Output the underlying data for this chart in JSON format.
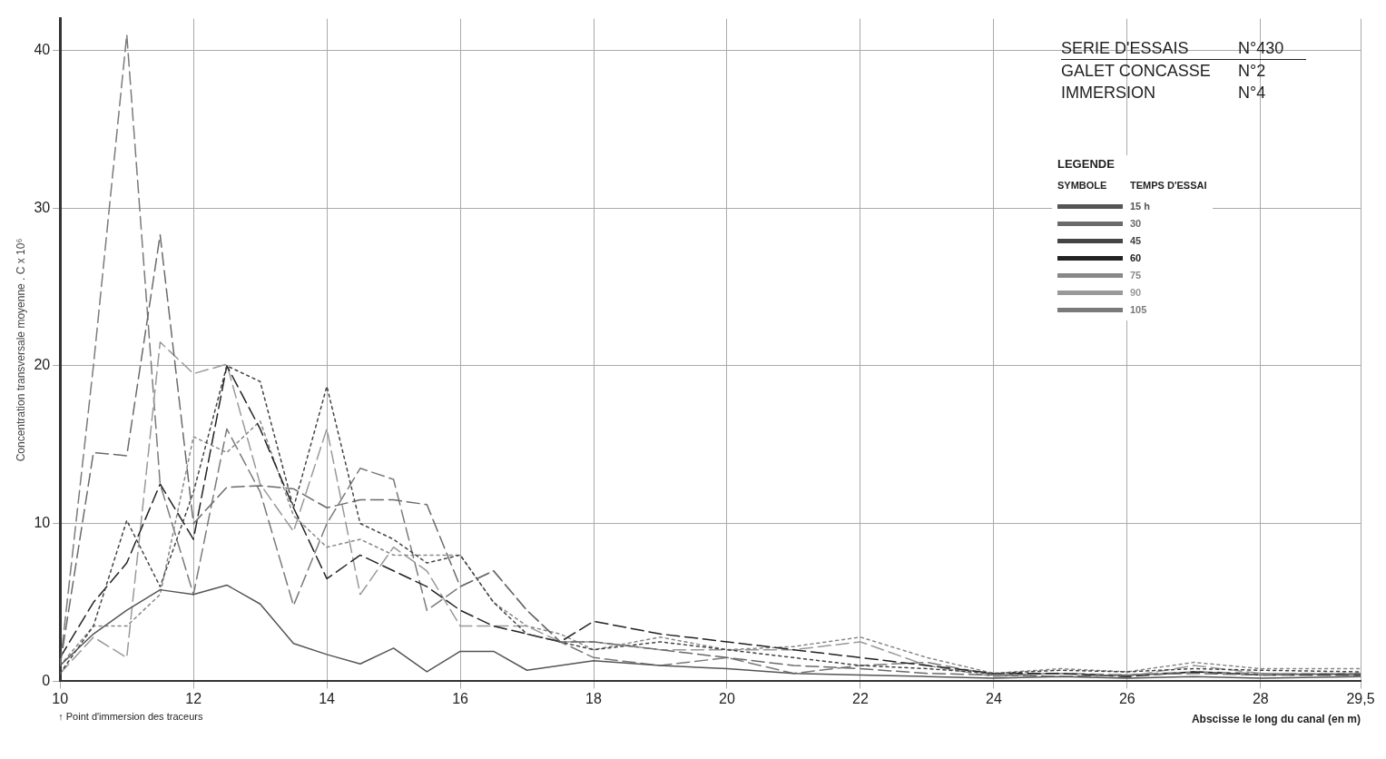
{
  "chart_data": {
    "type": "line",
    "ylabel": "Concentration transversale moyenne . C x 10⁶",
    "xlabel": "Abscisse le long du canal (en m)",
    "legend_title": "LEGENDE",
    "annotations": [
      "SERIE D'ESSAIS",
      "N°430",
      "GALET CONCASSE",
      "N°2",
      "IMMERSION",
      "N°4",
      "SYMBOLE",
      "TEMPS D'ESSAI",
      "↑ Point d'immersion des traceurs"
    ],
    "x": [
      10,
      10.5,
      11,
      11.5,
      12,
      12.5,
      13,
      13.5,
      14,
      14.5,
      15,
      15.5,
      16,
      16.5,
      17,
      17.5,
      18,
      19,
      20,
      21,
      22,
      23,
      24,
      25,
      26,
      27,
      28,
      29.5
    ],
    "series": [
      {
        "name": "15 h",
        "color": "#555555",
        "line_style": "solid",
        "values": [
          1,
          3,
          4.5,
          5.8,
          5.5,
          6.1,
          4.9,
          2.4,
          1.7,
          1.1,
          2.1,
          0.6,
          1.9,
          1.9,
          0.7,
          1,
          1.3,
          1,
          0.8,
          0.5,
          0.4,
          0.3,
          0.2,
          0.3,
          0.2,
          0.3,
          0.2,
          0.3
        ]
      },
      {
        "name": "30",
        "color": "#6a6a6a",
        "line_style": "dashed",
        "values": [
          1,
          14.5,
          14.3,
          28.3,
          10,
          12.3,
          12.4,
          12.2,
          11,
          11.5,
          11.5,
          11.2,
          6,
          7,
          4.5,
          2.5,
          2.5,
          2,
          1.5,
          1,
          0.8,
          0.5,
          0.4,
          0.3,
          0.4,
          0.5,
          0.4,
          0.5
        ]
      },
      {
        "name": "45",
        "color": "#444444",
        "line_style": "dotted",
        "values": [
          0.5,
          3.5,
          10.2,
          6,
          12,
          20,
          19,
          11,
          18.7,
          10,
          9,
          7.5,
          8,
          5,
          3,
          2.5,
          2,
          2.5,
          2,
          1.5,
          1,
          0.8,
          0.5,
          0.7,
          0.6,
          0.8,
          0.7,
          0.6
        ]
      },
      {
        "name": "60",
        "color": "#222222",
        "line_style": "dashed",
        "values": [
          1.5,
          5,
          7.5,
          12.5,
          9,
          20,
          16,
          11,
          6.5,
          8,
          7,
          6,
          4.5,
          3.5,
          3,
          2.5,
          3.8,
          3,
          2.5,
          2,
          1.5,
          1,
          0.5,
          0.5,
          0.3,
          0.6,
          0.4,
          0.4
        ]
      },
      {
        "name": "75",
        "color": "#888888",
        "line_style": "dotted",
        "values": [
          1,
          3.5,
          3.5,
          5.5,
          15.5,
          14.5,
          16.5,
          10.5,
          8.5,
          9,
          8,
          8,
          8,
          5,
          3.5,
          3,
          2,
          2.8,
          2,
          2.2,
          2.8,
          1.5,
          0.5,
          0.8,
          0.6,
          1.2,
          0.8,
          0.8
        ]
      },
      {
        "name": "90",
        "color": "#999999",
        "line_style": "dashed",
        "values": [
          0.5,
          2.8,
          1.5,
          21.5,
          19.5,
          20.1,
          12.5,
          9.5,
          16,
          5.5,
          8.5,
          7,
          3.5,
          3.5,
          3.5,
          2.5,
          2.5,
          2,
          2,
          2,
          2.5,
          1,
          0.3,
          0.5,
          0.3,
          1,
          0.5,
          0.5
        ]
      },
      {
        "name": "105",
        "color": "#7a7a7a",
        "line_style": "dashed",
        "values": [
          1,
          20,
          41,
          12.5,
          5.5,
          16,
          12,
          4.8,
          10,
          13.5,
          12.8,
          4.5,
          6,
          7,
          4.5,
          2.5,
          1.5,
          1,
          1.5,
          0.5,
          1,
          1.2,
          0.4,
          0.5,
          0.4,
          0.6,
          0.5,
          0.4
        ]
      }
    ],
    "xlim": [
      10,
      29.5
    ],
    "xticks": [
      10,
      12,
      14,
      16,
      18,
      20,
      22,
      24,
      26,
      28,
      {
        "value": 29.5,
        "label": "29,5"
      }
    ],
    "ylim": [
      0,
      42
    ],
    "yticks": [
      0,
      10,
      20,
      30,
      40
    ],
    "grid": true,
    "legend": "top right",
    "marker": "none"
  }
}
